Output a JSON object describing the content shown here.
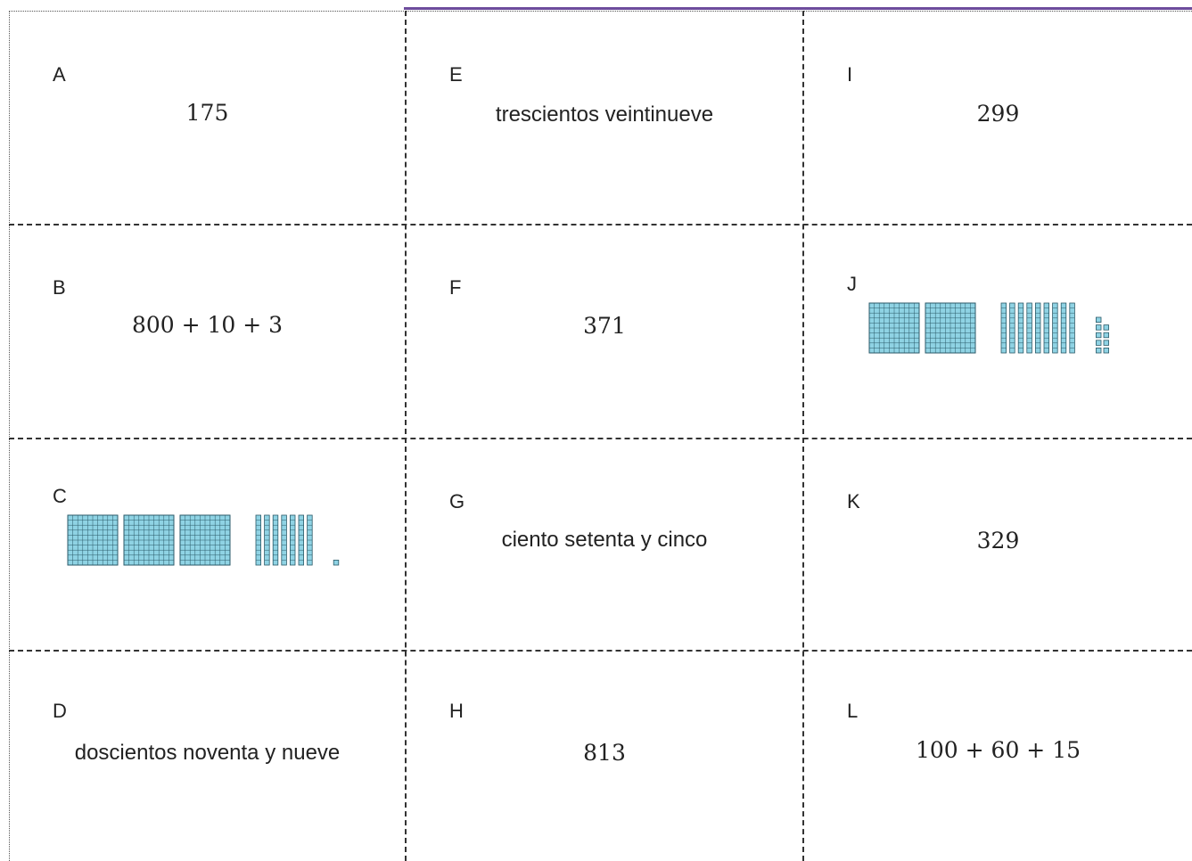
{
  "cards": [
    {
      "letter": "A",
      "content": "175",
      "kind": "number"
    },
    {
      "letter": "B",
      "content": "800 + 10 + 3",
      "kind": "expression"
    },
    {
      "letter": "C",
      "kind": "base-ten-blocks",
      "blocks": {
        "hundreds": 3,
        "tens": 7,
        "ones": 1
      }
    },
    {
      "letter": "D",
      "content": "doscientos noventa y nueve",
      "kind": "words"
    },
    {
      "letter": "E",
      "content": "trescientos veintinueve",
      "kind": "words"
    },
    {
      "letter": "F",
      "content": "371",
      "kind": "number"
    },
    {
      "letter": "G",
      "content": "ciento setenta y cinco",
      "kind": "words"
    },
    {
      "letter": "H",
      "content": "813",
      "kind": "number"
    },
    {
      "letter": "I",
      "content": "299",
      "kind": "number"
    },
    {
      "letter": "J",
      "kind": "base-ten-blocks",
      "blocks": {
        "hundreds": 2,
        "tens": 9,
        "ones": 9
      }
    },
    {
      "letter": "K",
      "content": "329",
      "kind": "number"
    },
    {
      "letter": "L",
      "content": "100 + 60 + 15",
      "kind": "expression"
    }
  ],
  "colors": {
    "block_fill": "#8fd3e4",
    "block_line": "#2b5a68",
    "accent": "#6d4c9c"
  }
}
